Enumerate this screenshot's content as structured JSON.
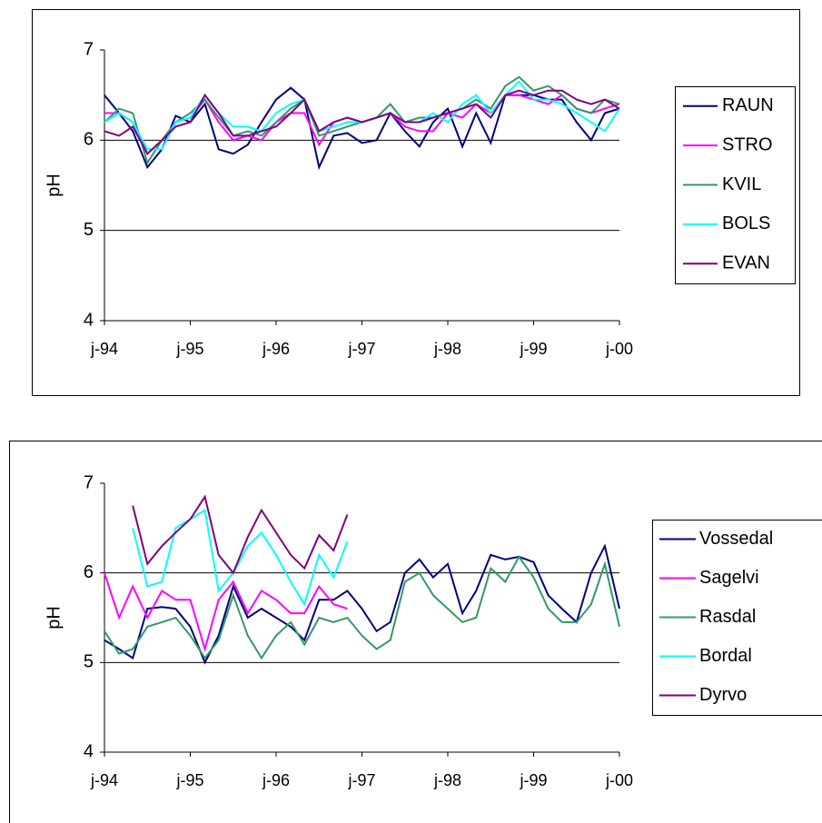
{
  "chart_data": [
    {
      "type": "line",
      "ylabel": "pH",
      "x": [
        1994,
        1994.17,
        1994.33,
        1994.5,
        1994.67,
        1994.83,
        1995,
        1995.17,
        1995.33,
        1995.5,
        1995.67,
        1995.83,
        1996,
        1996.17,
        1996.33,
        1996.5,
        1996.67,
        1996.83,
        1997,
        1997.17,
        1997.33,
        1997.5,
        1997.67,
        1997.83,
        1998,
        1998.17,
        1998.33,
        1998.5,
        1998.67,
        1998.83,
        1999,
        1999.17,
        1999.33,
        1999.5,
        1999.67,
        1999.83,
        2000
      ],
      "xlim": [
        1994,
        2000
      ],
      "xticks": [
        {
          "value": 1994,
          "label": "j-94"
        },
        {
          "value": 1995,
          "label": "j-95"
        },
        {
          "value": 1996,
          "label": "j-96"
        },
        {
          "value": 1997,
          "label": "j-97"
        },
        {
          "value": 1998,
          "label": "j-98"
        },
        {
          "value": 1999,
          "label": "j-99"
        },
        {
          "value": 2000,
          "label": "j-00"
        }
      ],
      "ylim": [
        4,
        7
      ],
      "yticks": [
        4,
        5,
        6,
        7
      ],
      "grid": true,
      "series": [
        {
          "name": "RAUN",
          "color": "#000080",
          "values": [
            6.5,
            6.3,
            6.1,
            5.7,
            5.9,
            6.27,
            6.2,
            6.4,
            5.9,
            5.85,
            5.95,
            6.2,
            6.45,
            6.58,
            6.45,
            5.7,
            6.05,
            6.08,
            5.97,
            6.0,
            6.3,
            6.1,
            5.93,
            6.2,
            6.35,
            5.93,
            6.3,
            5.97,
            6.5,
            6.5,
            6.5,
            6.45,
            6.45,
            6.2,
            6.0,
            6.3,
            6.35
          ]
        },
        {
          "name": "STRO",
          "color": "#ff00ff",
          "values": [
            6.3,
            6.3,
            6.2,
            5.85,
            6.0,
            6.2,
            6.25,
            6.45,
            6.2,
            6.0,
            6.05,
            6.0,
            6.2,
            6.3,
            6.3,
            5.95,
            6.2,
            6.25,
            6.2,
            6.25,
            6.3,
            6.15,
            6.1,
            6.1,
            6.3,
            6.25,
            6.4,
            6.3,
            6.5,
            6.5,
            6.45,
            6.4,
            6.5,
            6.35,
            6.3,
            6.35,
            6.4
          ]
        },
        {
          "name": "KVIL",
          "color": "#339966",
          "values": [
            6.2,
            6.35,
            6.3,
            5.75,
            6.0,
            6.2,
            6.3,
            6.45,
            6.25,
            6.05,
            6.1,
            6.05,
            6.2,
            6.35,
            6.45,
            6.05,
            6.1,
            6.15,
            6.2,
            6.25,
            6.4,
            6.2,
            6.25,
            6.25,
            6.3,
            6.35,
            6.45,
            6.35,
            6.6,
            6.7,
            6.55,
            6.6,
            6.5,
            6.35,
            6.3,
            6.45,
            6.4
          ]
        },
        {
          "name": "BOLS",
          "color": "#00ffff",
          "values": [
            6.2,
            6.3,
            6.2,
            5.9,
            5.9,
            6.2,
            6.25,
            6.5,
            6.3,
            6.15,
            6.15,
            6.1,
            6.3,
            6.4,
            6.45,
            6.1,
            6.15,
            6.2,
            6.2,
            6.25,
            6.3,
            6.2,
            6.2,
            6.3,
            6.2,
            6.4,
            6.5,
            6.3,
            6.5,
            6.65,
            6.45,
            6.45,
            6.4,
            6.3,
            6.2,
            6.1,
            6.35
          ]
        },
        {
          "name": "EVAN",
          "color": "#800080",
          "values": [
            6.1,
            6.05,
            6.15,
            5.85,
            6.0,
            6.15,
            6.2,
            6.5,
            6.3,
            6.05,
            6.05,
            6.1,
            6.15,
            6.3,
            6.45,
            6.1,
            6.2,
            6.25,
            6.2,
            6.25,
            6.3,
            6.2,
            6.2,
            6.25,
            6.3,
            6.35,
            6.4,
            6.25,
            6.5,
            6.55,
            6.5,
            6.55,
            6.55,
            6.45,
            6.4,
            6.45,
            6.35
          ]
        }
      ]
    },
    {
      "type": "line",
      "ylabel": "pH",
      "x": [
        1994,
        1994.17,
        1994.33,
        1994.5,
        1994.67,
        1994.83,
        1995,
        1995.17,
        1995.33,
        1995.5,
        1995.67,
        1995.83,
        1996,
        1996.17,
        1996.33,
        1996.5,
        1996.67,
        1996.83,
        1997,
        1997.17,
        1997.33,
        1997.5,
        1997.67,
        1997.83,
        1998,
        1998.17,
        1998.33,
        1998.5,
        1998.67,
        1998.83,
        1999,
        1999.17,
        1999.33,
        1999.5,
        1999.67,
        1999.83,
        2000
      ],
      "xlim": [
        1994,
        2000
      ],
      "xticks": [
        {
          "value": 1994,
          "label": "j-94"
        },
        {
          "value": 1995,
          "label": "j-95"
        },
        {
          "value": 1996,
          "label": "j-96"
        },
        {
          "value": 1997,
          "label": "j-97"
        },
        {
          "value": 1998,
          "label": "j-98"
        },
        {
          "value": 1999,
          "label": "j-99"
        },
        {
          "value": 2000,
          "label": "j-00"
        }
      ],
      "ylim": [
        4,
        7
      ],
      "yticks": [
        4,
        5,
        6,
        7
      ],
      "grid": true,
      "series": [
        {
          "name": "Vossedal",
          "color": "#000080",
          "values": [
            5.25,
            5.15,
            5.05,
            5.6,
            5.62,
            5.6,
            5.4,
            5.0,
            5.3,
            5.85,
            5.5,
            5.6,
            5.5,
            5.4,
            5.25,
            5.7,
            5.7,
            5.8,
            5.6,
            5.35,
            5.45,
            6.0,
            6.15,
            5.95,
            6.1,
            5.55,
            5.8,
            6.2,
            6.15,
            6.18,
            6.12,
            5.75,
            5.6,
            5.45,
            6.0,
            6.3,
            5.6
          ]
        },
        {
          "name": "Sagelvi",
          "color": "#ff00ff",
          "values": [
            6.0,
            5.5,
            5.85,
            5.5,
            5.8,
            5.7,
            5.7,
            5.15,
            5.7,
            5.9,
            5.55,
            5.8,
            5.7,
            5.55,
            5.55,
            5.85,
            5.65,
            5.6,
            null,
            null,
            null,
            null,
            null,
            null,
            null,
            null,
            null,
            null,
            null,
            null,
            null,
            null,
            null,
            null,
            null,
            null,
            null
          ]
        },
        {
          "name": "Rasdal",
          "color": "#339966",
          "values": [
            5.35,
            5.1,
            5.15,
            5.4,
            5.45,
            5.5,
            5.3,
            5.05,
            5.25,
            5.75,
            5.3,
            5.05,
            5.3,
            5.45,
            5.2,
            5.5,
            5.45,
            5.5,
            5.3,
            5.15,
            5.25,
            5.9,
            6.0,
            5.75,
            5.6,
            5.45,
            5.5,
            6.05,
            5.9,
            6.18,
            5.95,
            5.6,
            5.45,
            5.45,
            5.65,
            6.1,
            5.4
          ]
        },
        {
          "name": "Bordal",
          "color": "#00ffff",
          "values": [
            null,
            null,
            6.5,
            5.85,
            5.9,
            6.5,
            6.6,
            6.7,
            5.8,
            6.0,
            6.3,
            6.45,
            6.2,
            5.9,
            5.65,
            6.2,
            5.95,
            6.35,
            null,
            null,
            null,
            null,
            null,
            null,
            null,
            null,
            null,
            null,
            null,
            null,
            null,
            null,
            null,
            null,
            null,
            null,
            null
          ]
        },
        {
          "name": "Dyrvo",
          "color": "#800080",
          "values": [
            null,
            null,
            6.75,
            6.1,
            6.3,
            6.45,
            6.6,
            6.85,
            6.2,
            6.0,
            6.4,
            6.7,
            6.45,
            6.2,
            6.05,
            6.42,
            6.25,
            6.65,
            null,
            null,
            null,
            null,
            null,
            null,
            null,
            null,
            null,
            null,
            null,
            null,
            null,
            null,
            null,
            null,
            null,
            null,
            null
          ]
        }
      ]
    }
  ]
}
